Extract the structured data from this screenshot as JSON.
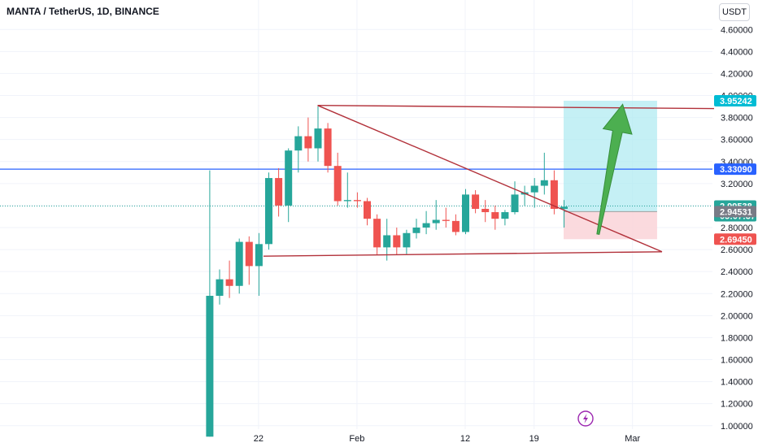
{
  "title": "MANTA / TetherUS, 1D, BINANCE",
  "unit_button": "USDT",
  "colors": {
    "up": "#26a69a",
    "down": "#ef5350",
    "trendline": "#b2313a",
    "hline": "#2962ff",
    "target_zone": "#b2ebf2",
    "stop_zone": "#fad4d8",
    "arrow": "#4caf50"
  },
  "chart_data": {
    "type": "candlestick",
    "x_labels": [
      {
        "label": "22",
        "day": 5
      },
      {
        "label": "Feb",
        "day": 15
      },
      {
        "label": "12",
        "day": 26
      },
      {
        "label": "19",
        "day": 33
      },
      {
        "label": "Mar",
        "day": 43
      }
    ],
    "ylim": [
      0.88,
      4.72
    ],
    "y_ticks": [
      "1.00000",
      "1.20000",
      "1.40000",
      "1.60000",
      "1.80000",
      "2.00000",
      "2.20000",
      "2.40000",
      "2.60000",
      "2.80000",
      "3.00000",
      "3.20000",
      "3.40000",
      "3.60000",
      "3.80000",
      "4.00000",
      "4.20000",
      "4.40000",
      "4.60000"
    ],
    "candles": [
      {
        "o": 0.9,
        "h": 3.32,
        "l": 0.9,
        "c": 2.18
      },
      {
        "o": 2.18,
        "h": 2.42,
        "l": 2.1,
        "c": 2.33
      },
      {
        "o": 2.33,
        "h": 2.5,
        "l": 2.16,
        "c": 2.27
      },
      {
        "o": 2.27,
        "h": 2.7,
        "l": 2.2,
        "c": 2.67
      },
      {
        "o": 2.67,
        "h": 2.72,
        "l": 2.28,
        "c": 2.45
      },
      {
        "o": 2.45,
        "h": 2.75,
        "l": 2.18,
        "c": 2.65
      },
      {
        "o": 2.65,
        "h": 3.3,
        "l": 2.6,
        "c": 3.25
      },
      {
        "o": 3.25,
        "h": 3.34,
        "l": 2.9,
        "c": 3.0
      },
      {
        "o": 3.0,
        "h": 3.52,
        "l": 2.85,
        "c": 3.5
      },
      {
        "o": 3.5,
        "h": 3.72,
        "l": 3.3,
        "c": 3.63
      },
      {
        "o": 3.63,
        "h": 3.8,
        "l": 3.4,
        "c": 3.52
      },
      {
        "o": 3.52,
        "h": 3.9,
        "l": 3.4,
        "c": 3.7
      },
      {
        "o": 3.7,
        "h": 3.75,
        "l": 3.3,
        "c": 3.36
      },
      {
        "o": 3.36,
        "h": 3.48,
        "l": 3.0,
        "c": 3.04
      },
      {
        "o": 3.04,
        "h": 3.3,
        "l": 2.98,
        "c": 3.05
      },
      {
        "o": 3.05,
        "h": 3.12,
        "l": 2.98,
        "c": 3.04
      },
      {
        "o": 3.04,
        "h": 3.07,
        "l": 2.82,
        "c": 2.88
      },
      {
        "o": 2.88,
        "h": 2.92,
        "l": 2.55,
        "c": 2.62
      },
      {
        "o": 2.62,
        "h": 2.88,
        "l": 2.5,
        "c": 2.73
      },
      {
        "o": 2.73,
        "h": 2.8,
        "l": 2.55,
        "c": 2.62
      },
      {
        "o": 2.62,
        "h": 2.78,
        "l": 2.56,
        "c": 2.75
      },
      {
        "o": 2.75,
        "h": 2.88,
        "l": 2.7,
        "c": 2.8
      },
      {
        "o": 2.8,
        "h": 2.95,
        "l": 2.74,
        "c": 2.84
      },
      {
        "o": 2.84,
        "h": 3.05,
        "l": 2.78,
        "c": 2.87
      },
      {
        "o": 2.87,
        "h": 2.98,
        "l": 2.8,
        "c": 2.86
      },
      {
        "o": 2.86,
        "h": 2.92,
        "l": 2.73,
        "c": 2.76
      },
      {
        "o": 2.76,
        "h": 3.15,
        "l": 2.74,
        "c": 3.1
      },
      {
        "o": 3.1,
        "h": 3.14,
        "l": 2.93,
        "c": 2.97
      },
      {
        "o": 2.97,
        "h": 3.05,
        "l": 2.85,
        "c": 2.94
      },
      {
        "o": 2.94,
        "h": 3.0,
        "l": 2.78,
        "c": 2.88
      },
      {
        "o": 2.88,
        "h": 2.96,
        "l": 2.82,
        "c": 2.94
      },
      {
        "o": 2.94,
        "h": 3.22,
        "l": 2.92,
        "c": 3.1
      },
      {
        "o": 3.1,
        "h": 3.18,
        "l": 3.0,
        "c": 3.12
      },
      {
        "o": 3.12,
        "h": 3.25,
        "l": 2.98,
        "c": 3.18
      },
      {
        "o": 3.18,
        "h": 3.48,
        "l": 3.1,
        "c": 3.23
      },
      {
        "o": 3.23,
        "h": 3.32,
        "l": 2.92,
        "c": 2.97
      },
      {
        "o": 2.97,
        "h": 3.05,
        "l": 2.8,
        "c": 2.99
      }
    ],
    "hline": {
      "value": 3.3309,
      "label": "3.33090"
    },
    "price_badges": [
      {
        "label": "3.95242",
        "value": 3.95242,
        "color": "#00bcd4"
      },
      {
        "label": "3.33090",
        "value": 3.3309,
        "color": "#2962ff"
      },
      {
        "label": "2.99538",
        "value": 2.99538,
        "color": "#26a69a",
        "sub": "05:07:37"
      },
      {
        "label": "2.94531",
        "value": 2.94531,
        "color": "#787b86"
      },
      {
        "label": "2.69450",
        "value": 2.6945,
        "color": "#ef5350"
      }
    ],
    "position": {
      "start_day": 36,
      "end_day": 45.5,
      "target": 3.95242,
      "entry": 2.94531,
      "stop": 2.6945
    },
    "trendlines": [
      {
        "from": [
          11,
          3.91
        ],
        "to": [
          53,
          3.88
        ]
      },
      {
        "from": [
          11,
          3.91
        ],
        "to": [
          46,
          2.58
        ]
      },
      {
        "from": [
          5.5,
          2.54
        ],
        "to": [
          46,
          2.58
        ]
      }
    ],
    "arrow": {
      "from": [
        39.5,
        2.74
      ],
      "to": [
        42,
        3.92
      ]
    },
    "current_price": 2.99538
  }
}
